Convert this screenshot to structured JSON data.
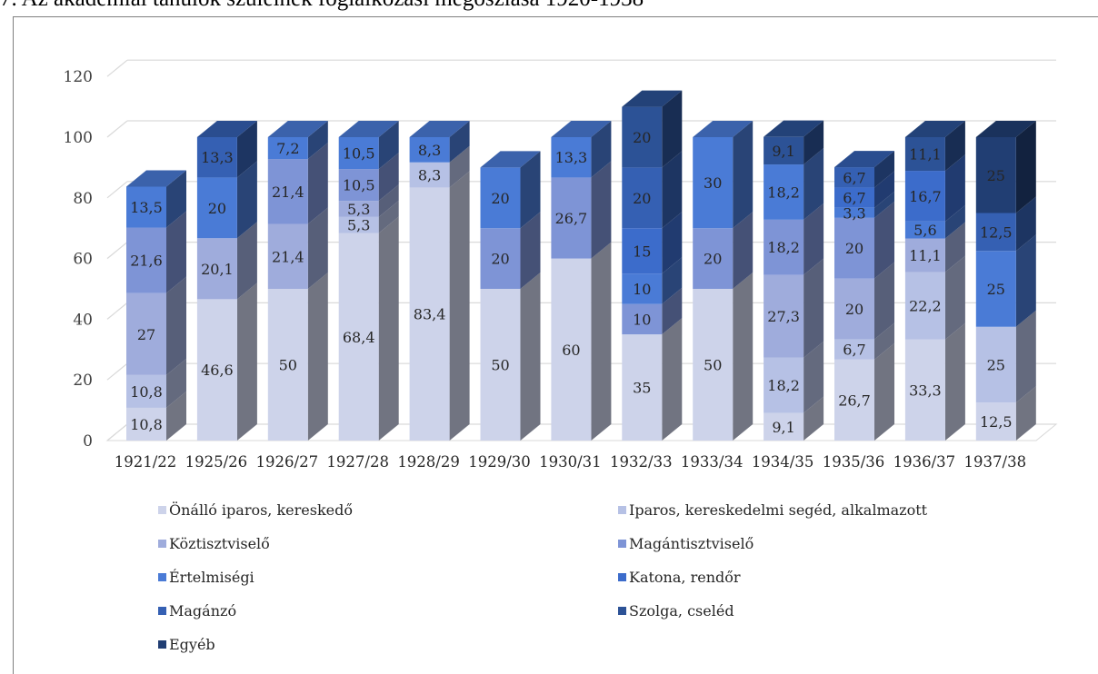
{
  "title": "7. Az akadémiai tanulók szüleinek foglalkozási megoszlása 1920-1938",
  "chart_data": {
    "type": "bar",
    "stacked": true,
    "three_d": true,
    "categories": [
      "1921/22",
      "1925/26",
      "1926/27",
      "1927/28",
      "1928/29",
      "1929/30",
      "1930/31",
      "1932/33",
      "1933/34",
      "1934/35",
      "1935/36",
      "1936/37",
      "1937/38"
    ],
    "ylim": [
      0,
      120
    ],
    "yticks": [
      0,
      20,
      40,
      60,
      80,
      100,
      120
    ],
    "grid": true,
    "legend_position": "bottom",
    "series": [
      {
        "name": "Önálló iparos, kereskedő",
        "color": "#cdd3ea",
        "values": [
          10.8,
          46.6,
          50,
          68.4,
          83.4,
          50,
          60,
          35,
          50,
          9.1,
          26.7,
          33.3,
          12.5
        ]
      },
      {
        "name": "Iparos, kereskedelmi segéd, alkalmazott",
        "color": "#b6c1e5",
        "values": [
          10.8,
          0,
          0,
          5.3,
          8.3,
          0,
          0,
          0,
          0,
          18.2,
          6.7,
          22.2,
          25
        ]
      },
      {
        "name": "Köztisztviselő",
        "color": "#9facdc",
        "values": [
          27,
          20.1,
          21.4,
          5.3,
          0,
          0,
          0,
          0,
          0,
          27.3,
          20,
          11.1,
          0
        ]
      },
      {
        "name": "Magántisztviselő",
        "color": "#7e94d6",
        "values": [
          21.6,
          0,
          21.4,
          10.5,
          0,
          20,
          26.7,
          10,
          20,
          18.2,
          20,
          0,
          0
        ]
      },
      {
        "name": "Értelmiségi",
        "color": "#4a7bd6",
        "values": [
          13.5,
          20,
          7.2,
          10.5,
          8.3,
          20,
          13.3,
          10,
          30,
          18.2,
          3.3,
          5.6,
          25
        ]
      },
      {
        "name": "Katona, rendőr",
        "color": "#3c6ccb",
        "values": [
          0,
          0,
          0,
          0,
          0,
          0,
          0,
          15,
          0,
          0,
          6.7,
          16.7,
          0
        ]
      },
      {
        "name": "Magánzó",
        "color": "#3560b3",
        "values": [
          0,
          13.3,
          0,
          0,
          0,
          0,
          0,
          20,
          0,
          0,
          6.7,
          0,
          12.5
        ]
      },
      {
        "name": "Szolga, cseléd",
        "color": "#2c5296",
        "values": [
          0,
          0,
          0,
          0,
          0,
          0,
          0,
          20,
          0,
          9.1,
          0,
          11.1,
          0
        ]
      },
      {
        "name": "Egyéb",
        "color": "#213e73",
        "values": [
          0,
          0,
          0,
          0,
          0,
          0,
          0,
          0,
          0,
          0,
          0,
          0,
          25
        ]
      }
    ],
    "labels": [
      [
        "10,8",
        "10,8",
        "27",
        "21,6",
        "13,5"
      ],
      [
        "46,6",
        "20,1",
        "20",
        "13,3"
      ],
      [
        "50",
        "21,4",
        "21,4",
        "7,2"
      ],
      [
        "68,4",
        "5,3",
        "5,3",
        "10,5",
        "10,5"
      ],
      [
        "83,4",
        "8,3",
        "8,3"
      ],
      [
        "50",
        "20",
        "20"
      ],
      [
        "60",
        "26,7",
        "13,3"
      ],
      [
        "35",
        "10",
        "10",
        "15",
        "20",
        "20"
      ],
      [
        "50",
        "20",
        "30"
      ],
      [
        "9,1",
        "18,2",
        "27,3",
        "18,2",
        "18,2",
        "9,1"
      ],
      [
        "26,7",
        "6,7",
        "20",
        "20",
        "3,3",
        "6,7",
        "6,7"
      ],
      [
        "33,3",
        "22,2",
        "11,1",
        "5,6",
        "16,7",
        "11,1"
      ],
      [
        "12,5",
        "25",
        "25",
        "12,5",
        "25"
      ]
    ]
  }
}
